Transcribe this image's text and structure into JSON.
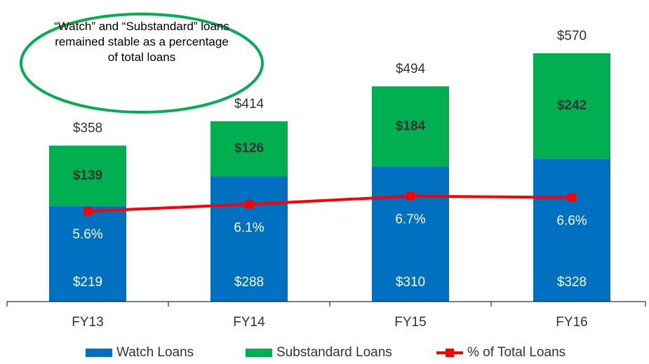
{
  "chart_data": {
    "type": "bar",
    "annotation": "“Watch” and “Substandard” loans remained stable as a percentage of total loans",
    "categories": [
      "FY13",
      "FY14",
      "FY15",
      "FY16"
    ],
    "series": [
      {
        "name": "Watch Loans",
        "color": "#0070c0",
        "values": [
          219,
          288,
          310,
          328
        ],
        "value_labels": [
          "$219",
          "$288",
          "$310",
          "$328"
        ]
      },
      {
        "name": "Substandard Loans",
        "color": "#00b050",
        "values": [
          139,
          126,
          184,
          242
        ],
        "value_labels": [
          "$139",
          "$126",
          "$184",
          "$242"
        ]
      },
      {
        "name": "% of Total Loans",
        "type": "line",
        "axis": "y2",
        "color": "#ff0000",
        "values": [
          5.6,
          6.1,
          6.7,
          6.6
        ],
        "value_labels": [
          "5.6%",
          "6.1%",
          "6.7%",
          "6.6%"
        ]
      }
    ],
    "total_labels": [
      "$358",
      "$414",
      "$494",
      "$570"
    ],
    "ylim": [
      0,
      660
    ],
    "y2lim": [
      -1,
      20
    ],
    "stacked": true,
    "legend": "bottom"
  }
}
